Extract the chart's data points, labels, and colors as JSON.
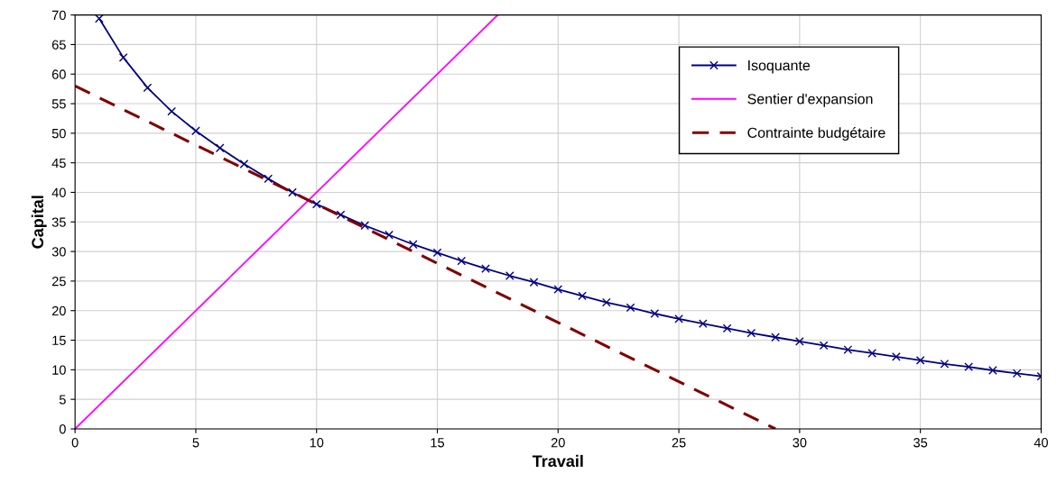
{
  "chart_data": {
    "type": "line",
    "xlabel": "Travail",
    "ylabel": "Capital",
    "xlim": [
      0,
      40
    ],
    "ylim": [
      0,
      70
    ],
    "xticks": [
      0,
      5,
      10,
      15,
      20,
      25,
      30,
      35,
      40
    ],
    "yticks": [
      0,
      5,
      10,
      15,
      20,
      25,
      30,
      35,
      40,
      45,
      50,
      55,
      60,
      65,
      70
    ],
    "grid": true,
    "legend": "top right",
    "series": [
      {
        "name": "Isoquante",
        "color": "#000080",
        "marker": "cross",
        "line_style": "solid",
        "x": [
          1,
          2,
          3,
          4,
          5,
          6,
          7,
          8,
          9,
          10,
          11,
          12,
          13,
          14,
          15,
          16,
          17,
          18,
          19,
          20,
          21,
          22,
          23,
          24,
          25,
          26,
          27,
          28,
          29,
          30,
          31,
          32,
          33,
          34,
          35,
          36,
          37,
          38,
          39,
          40
        ],
        "values": [
          69.4,
          62.8,
          57.7,
          53.7,
          50.4,
          47.5,
          44.8,
          42.3,
          40.0,
          38.0,
          36.2,
          34.4,
          32.8,
          31.2,
          29.8,
          28.4,
          27.1,
          25.9,
          24.8,
          23.6,
          22.5,
          21.4,
          20.5,
          19.5,
          18.6,
          17.8,
          17.0,
          16.2,
          15.5,
          14.8,
          14.1,
          13.4,
          12.8,
          12.2,
          11.6,
          11.0,
          10.5,
          9.9,
          9.4,
          8.9
        ]
      },
      {
        "name": "Sentier d'expansion",
        "color": "#ff00ff",
        "marker": "none",
        "line_style": "solid",
        "x": [
          0,
          17.5
        ],
        "values": [
          0,
          70
        ]
      },
      {
        "name": "Contrainte budgétaire",
        "color": "#800000",
        "marker": "none",
        "line_style": "dashed",
        "x": [
          0,
          29
        ],
        "values": [
          58,
          0
        ]
      }
    ]
  }
}
